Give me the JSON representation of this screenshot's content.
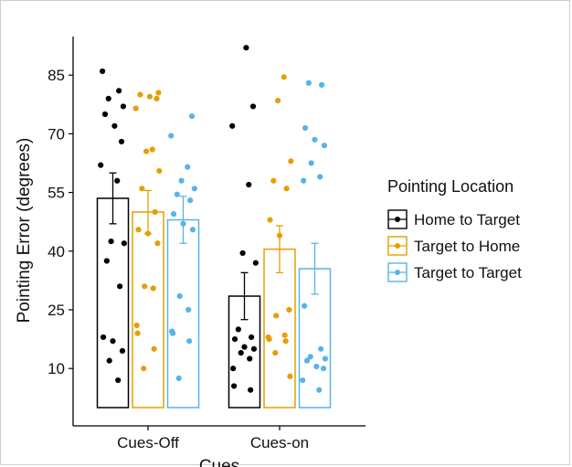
{
  "chart_data": {
    "type": "bar",
    "xlabel": "Cues",
    "ylabel": "Pointing Error (degrees)",
    "categories": [
      "Cues-Off",
      "Cues-on"
    ],
    "yticks": [
      10,
      25,
      40,
      55,
      70,
      85
    ],
    "ylim": [
      0,
      93
    ],
    "legend": {
      "title": "Pointing Location",
      "placement": "right"
    },
    "series": [
      {
        "name": "Home to Target",
        "color": "#000000",
        "values": [
          53.5,
          28.5
        ],
        "errors": [
          6.5,
          6.0
        ],
        "points": [
          [
            86,
            81,
            79,
            77,
            75,
            72,
            68,
            62,
            58,
            42.5,
            42,
            37.5,
            31,
            18,
            17,
            14.5,
            12,
            7
          ],
          [
            92,
            77,
            72,
            57,
            39.5,
            37,
            20,
            18,
            17.5,
            15.5,
            15,
            14,
            12.5,
            10,
            5.5,
            4.5
          ]
        ]
      },
      {
        "name": "Target to Home",
        "color": "#E69F00",
        "values": [
          50,
          40.5
        ],
        "errors": [
          5.5,
          6.0
        ],
        "points": [
          [
            80.5,
            80,
            79.5,
            79,
            76.5,
            66,
            65.5,
            60.5,
            56,
            50,
            45.5,
            44.5,
            42,
            31,
            30.5,
            21,
            19,
            15,
            10
          ],
          [
            84.5,
            78.5,
            63,
            58,
            56,
            48,
            44,
            25,
            23.5,
            18.5,
            18,
            17.5,
            17,
            14,
            8
          ]
        ]
      },
      {
        "name": "Target to Target",
        "color": "#56B4E9",
        "values": [
          48,
          35.5
        ],
        "errors": [
          6.0,
          6.5
        ],
        "points": [
          [
            74.5,
            69.5,
            61.5,
            58,
            56,
            54.5,
            53,
            49.5,
            47,
            45.5,
            28.5,
            25,
            19.5,
            19,
            17,
            7.5
          ],
          [
            83,
            82.5,
            71.5,
            68.5,
            67,
            62.5,
            59,
            58,
            26,
            15,
            13,
            12.5,
            12,
            10.5,
            10,
            7,
            4.5
          ]
        ]
      }
    ]
  }
}
